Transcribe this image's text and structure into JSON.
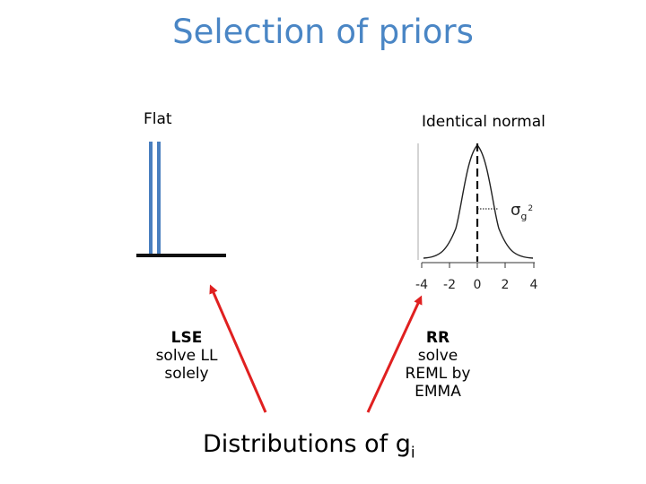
{
  "title": "Selection of priors",
  "flat": {
    "label": "Flat"
  },
  "normal": {
    "label": "Identical normal",
    "variance_symbol": "σ",
    "variance_sub": "g",
    "variance_sup": "2",
    "ticks": [
      "-4",
      "-2",
      "0",
      "2",
      "4"
    ]
  },
  "lse": {
    "title": "LSE",
    "line1": "solve LL",
    "line2": "solely"
  },
  "rr": {
    "title": "RR",
    "line1": "solve",
    "line2": "REML by",
    "line3": "EMMA"
  },
  "bottom": {
    "text": "Distributions of g",
    "sub": "i"
  },
  "colors": {
    "title": "#4a86c5",
    "flat_bar": "#4a7fbf",
    "arrow": "#e02020"
  }
}
